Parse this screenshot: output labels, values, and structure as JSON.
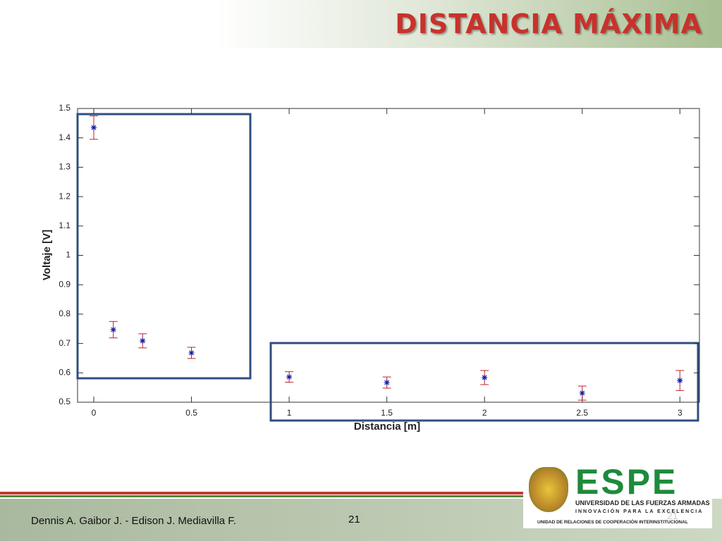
{
  "title": "DISTANCIA MÁXIMA",
  "chart_data": {
    "type": "scatter",
    "xlabel": "Distancia [m]",
    "ylabel": "Voltaje [V]",
    "x": [
      0,
      0.1,
      0.25,
      0.5,
      1,
      1.5,
      2,
      2.5,
      3
    ],
    "values": [
      1.435,
      0.747,
      0.709,
      0.668,
      0.586,
      0.567,
      0.584,
      0.531,
      0.574
    ],
    "errors": [
      0.04,
      0.028,
      0.024,
      0.019,
      0.018,
      0.019,
      0.024,
      0.024,
      0.034
    ],
    "color": "#1a1aa0",
    "error_color": "#c0202a",
    "xlim": [
      -0.083,
      3.1
    ],
    "ylim": [
      0.5,
      1.5
    ],
    "xticks": [
      0,
      0.5,
      1,
      1.5,
      2,
      2.5,
      3
    ],
    "yticks": [
      0.5,
      0.6,
      0.7,
      0.8,
      0.9,
      1,
      1.1,
      1.2,
      1.3,
      1.4,
      1.5
    ],
    "grid": false
  },
  "footer": {
    "authors": "Dennis A. Gaibor J.  -  Edison J. Mediavilla F.",
    "page": "21"
  },
  "logo": {
    "name": "ESPE",
    "line1": "UNIVERSIDAD DE LAS FUERZAS ARMADAS",
    "line2": "INNOVACIÓN PARA LA EXCELENCIA",
    "line3": "UNIDAD DE RELACIONES DE COOPERACIÓN INTERINSTITUCIONAL"
  }
}
